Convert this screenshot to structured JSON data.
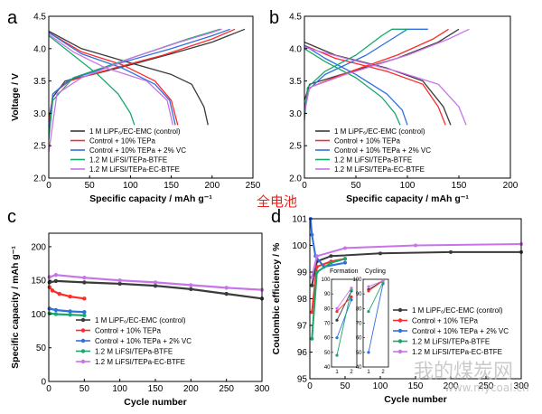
{
  "colors": {
    "s1": "#3a3a3a",
    "s2": "#ff2a2a",
    "s3": "#2f6fe0",
    "s4": "#19a86a",
    "s5": "#c774e8"
  },
  "legend_labels": [
    "1 M LiPF₆/EC-EMC (control)",
    "Control + 10% TEPa",
    "Control + 10% TEPa + 2% VC",
    "1.2 M LiFSI/TEPa-BTFE",
    "1.2 M LiFSI/TEPa-EC-BTFE"
  ],
  "annotation_cn": "全电池",
  "watermark": {
    "big": "我的煤炭网",
    "small": "www.mycoal.cn"
  },
  "chart_data": [
    {
      "panel": "a",
      "type": "line",
      "xlabel": "Specific capacity / mAh g⁻¹",
      "ylabel": "Voltage / V",
      "xlim": [
        0,
        250
      ],
      "ylim": [
        2.0,
        4.5
      ],
      "xticks": [
        0,
        50,
        100,
        150,
        200,
        250
      ],
      "yticks": [
        2.0,
        2.5,
        3.0,
        3.5,
        4.0,
        4.5
      ],
      "series": [
        {
          "name": "1 M LiPF₆/EC-EMC (control)",
          "charge": [
            [
              0,
              2.9
            ],
            [
              5,
              3.25
            ],
            [
              20,
              3.5
            ],
            [
              60,
              3.62
            ],
            [
              100,
              3.75
            ],
            [
              150,
              3.92
            ],
            [
              200,
              4.1
            ],
            [
              240,
              4.3
            ]
          ],
          "discharge": [
            [
              0,
              4.27
            ],
            [
              40,
              4.0
            ],
            [
              100,
              3.78
            ],
            [
              150,
              3.6
            ],
            [
              175,
              3.45
            ],
            [
              190,
              3.1
            ],
            [
              195,
              2.82
            ]
          ]
        },
        {
          "name": "Control + 10% TEPa",
          "charge": [
            [
              0,
              2.8
            ],
            [
              5,
              3.3
            ],
            [
              25,
              3.5
            ],
            [
              80,
              3.7
            ],
            [
              140,
              3.9
            ],
            [
              200,
              4.15
            ],
            [
              228,
              4.3
            ]
          ],
          "discharge": [
            [
              0,
              4.25
            ],
            [
              40,
              3.95
            ],
            [
              90,
              3.75
            ],
            [
              130,
              3.5
            ],
            [
              150,
              3.2
            ],
            [
              158,
              2.82
            ]
          ]
        },
        {
          "name": "Control + 10% TEPa + 2% VC",
          "charge": [
            [
              0,
              2.7
            ],
            [
              5,
              3.3
            ],
            [
              25,
              3.52
            ],
            [
              80,
              3.75
            ],
            [
              150,
              4.0
            ],
            [
              200,
              4.2
            ],
            [
              222,
              4.3
            ]
          ],
          "discharge": [
            [
              0,
              4.25
            ],
            [
              40,
              3.92
            ],
            [
              90,
              3.7
            ],
            [
              130,
              3.45
            ],
            [
              148,
              3.2
            ],
            [
              155,
              2.82
            ]
          ]
        },
        {
          "name": "1.2 M LiFSI/TEPa-BTFE",
          "charge": [
            [
              0,
              2.6
            ],
            [
              5,
              3.2
            ],
            [
              30,
              3.55
            ],
            [
              100,
              3.85
            ],
            [
              170,
              4.15
            ],
            [
              210,
              4.3
            ]
          ],
          "discharge": [
            [
              0,
              4.2
            ],
            [
              30,
              3.9
            ],
            [
              60,
              3.6
            ],
            [
              85,
              3.3
            ],
            [
              100,
              3.0
            ],
            [
              105,
              2.82
            ]
          ]
        },
        {
          "name": "1.2 M LiFSI/TEPa-EC-BTFE",
          "charge": [
            [
              0,
              2.4
            ],
            [
              10,
              3.3
            ],
            [
              40,
              3.55
            ],
            [
              100,
              3.85
            ],
            [
              160,
              4.1
            ],
            [
              200,
              4.25
            ],
            [
              212,
              4.3
            ]
          ],
          "discharge": [
            [
              0,
              4.22
            ],
            [
              30,
              3.95
            ],
            [
              70,
              3.7
            ],
            [
              120,
              3.5
            ],
            [
              145,
              3.2
            ],
            [
              152,
              2.82
            ]
          ]
        }
      ]
    },
    {
      "panel": "b",
      "type": "line",
      "xlabel": "Specific capacity / mAh g⁻¹",
      "ylabel": "",
      "xlim": [
        0,
        200
      ],
      "ylim": [
        2.0,
        4.5
      ],
      "xticks": [
        0,
        50,
        100,
        150,
        200
      ],
      "yticks": [
        2.0,
        2.5,
        3.0,
        3.5,
        4.0,
        4.5
      ],
      "series": [
        {
          "name": "1 M LiPF₆/EC-EMC (control)",
          "charge": [
            [
              0,
              3.2
            ],
            [
              5,
              3.45
            ],
            [
              40,
              3.62
            ],
            [
              90,
              3.85
            ],
            [
              130,
              4.1
            ],
            [
              150,
              4.3
            ]
          ],
          "discharge": [
            [
              0,
              4.1
            ],
            [
              30,
              3.9
            ],
            [
              80,
              3.7
            ],
            [
              115,
              3.5
            ],
            [
              135,
              3.1
            ],
            [
              142,
              2.82
            ]
          ]
        },
        {
          "name": "Control + 10% TEPa",
          "charge": [
            [
              0,
              3.1
            ],
            [
              5,
              3.4
            ],
            [
              40,
              3.62
            ],
            [
              90,
              3.9
            ],
            [
              125,
              4.15
            ],
            [
              140,
              4.3
            ]
          ],
          "discharge": [
            [
              0,
              4.05
            ],
            [
              30,
              3.85
            ],
            [
              80,
              3.65
            ],
            [
              115,
              3.45
            ],
            [
              130,
              3.1
            ],
            [
              137,
              2.82
            ]
          ]
        },
        {
          "name": "Control + 10% TEPa + 2% VC",
          "charge": [
            [
              0,
              3.0
            ],
            [
              3,
              3.35
            ],
            [
              20,
              3.6
            ],
            [
              60,
              3.9
            ],
            [
              90,
              4.2
            ],
            [
              100,
              4.3
            ],
            [
              120,
              4.3
            ]
          ],
          "discharge": [
            [
              0,
              4.05
            ],
            [
              20,
              3.85
            ],
            [
              50,
              3.6
            ],
            [
              80,
              3.3
            ],
            [
              95,
              3.05
            ],
            [
              100,
              2.82
            ]
          ]
        },
        {
          "name": "1.2 M LiFSI/TEPa-BTFE",
          "charge": [
            [
              0,
              2.9
            ],
            [
              3,
              3.4
            ],
            [
              20,
              3.65
            ],
            [
              50,
              3.9
            ],
            [
              75,
              4.2
            ],
            [
              85,
              4.3
            ],
            [
              100,
              4.3
            ]
          ],
          "discharge": [
            [
              0,
              4.0
            ],
            [
              20,
              3.8
            ],
            [
              50,
              3.55
            ],
            [
              75,
              3.25
            ],
            [
              88,
              3.0
            ],
            [
              93,
              2.82
            ]
          ]
        },
        {
          "name": "1.2 M LiFSI/TEPa-EC-BTFE",
          "charge": [
            [
              0,
              3.0
            ],
            [
              5,
              3.4
            ],
            [
              40,
              3.6
            ],
            [
              100,
              3.9
            ],
            [
              140,
              4.15
            ],
            [
              160,
              4.3
            ]
          ],
          "discharge": [
            [
              0,
              4.02
            ],
            [
              40,
              3.85
            ],
            [
              90,
              3.65
            ],
            [
              130,
              3.45
            ],
            [
              150,
              3.1
            ],
            [
              157,
              2.82
            ]
          ]
        }
      ]
    },
    {
      "panel": "c",
      "type": "line",
      "xlabel": "Cycle number",
      "ylabel": "Specific capacity / mAh g⁻¹",
      "xlim": [
        0,
        300
      ],
      "ylim": [
        0,
        220
      ],
      "xticks": [
        0,
        50,
        100,
        150,
        200,
        250,
        300
      ],
      "yticks": [
        0,
        50,
        100,
        150,
        200
      ],
      "series": [
        {
          "name": "1 M LiPF₆/EC-EMC (control)",
          "points": [
            [
              1,
              147
            ],
            [
              10,
              149
            ],
            [
              50,
              147
            ],
            [
              100,
              145
            ],
            [
              150,
              142
            ],
            [
              200,
              137
            ],
            [
              250,
              130
            ],
            [
              300,
              123
            ]
          ]
        },
        {
          "name": "Control + 10% TEPa",
          "points": [
            [
              1,
              140
            ],
            [
              5,
              135
            ],
            [
              15,
              130
            ],
            [
              30,
              126
            ],
            [
              50,
              123
            ]
          ]
        },
        {
          "name": "Control + 10% TEPa + 2% VC",
          "points": [
            [
              1,
              108
            ],
            [
              10,
              106
            ],
            [
              30,
              104
            ],
            [
              50,
              103
            ]
          ]
        },
        {
          "name": "1.2 M LiFSI/TEPa-BTFE",
          "points": [
            [
              1,
              101
            ],
            [
              10,
              100
            ],
            [
              30,
              99
            ],
            [
              50,
              98
            ]
          ]
        },
        {
          "name": "1.2 M LiFSI/TEPa-EC-BTFE",
          "points": [
            [
              1,
              155
            ],
            [
              10,
              158
            ],
            [
              50,
              154
            ],
            [
              100,
              150
            ],
            [
              150,
              147
            ],
            [
              200,
              143
            ],
            [
              250,
              139
            ],
            [
              300,
              136
            ]
          ]
        }
      ]
    },
    {
      "panel": "d",
      "type": "line",
      "xlabel": "Cycle number",
      "ylabel": "Coulombic efficiency / %",
      "xlim": [
        0,
        300
      ],
      "ylim": [
        95,
        101
      ],
      "xticks": [
        0,
        50,
        100,
        150,
        200,
        250,
        300
      ],
      "yticks": [
        95,
        96,
        97,
        98,
        99,
        100,
        101
      ],
      "series": [
        {
          "name": "1 M LiPF₆/EC-EMC (control)",
          "points": [
            [
              3,
              98.5
            ],
            [
              10,
              99.4
            ],
            [
              30,
              99.6
            ],
            [
              100,
              99.7
            ],
            [
              200,
              99.75
            ],
            [
              300,
              99.75
            ]
          ]
        },
        {
          "name": "Control + 10% TEPa",
          "points": [
            [
              3,
              97.5
            ],
            [
              10,
              99.2
            ],
            [
              30,
              99.4
            ],
            [
              50,
              99.5
            ]
          ]
        },
        {
          "name": "Control + 10% TEPa + 2% VC",
          "points": [
            [
              1,
              101
            ],
            [
              3,
              100.4
            ],
            [
              8,
              99.6
            ],
            [
              20,
              99.2
            ],
            [
              50,
              99.35
            ]
          ]
        },
        {
          "name": "1.2 M LiFSI/TEPa-BTFE",
          "points": [
            [
              3,
              96.5
            ],
            [
              10,
              99.0
            ],
            [
              30,
              99.35
            ],
            [
              50,
              99.5
            ]
          ]
        },
        {
          "name": "1.2 M LiFSI/TEPa-EC-BTFE",
          "points": [
            [
              3,
              98.8
            ],
            [
              10,
              99.6
            ],
            [
              50,
              99.9
            ],
            [
              150,
              100.0
            ],
            [
              300,
              100.05
            ]
          ]
        }
      ],
      "inset": {
        "labels": [
          "Formation",
          "Cycling"
        ],
        "ylim": [
          40,
          100
        ],
        "yticks": [
          40,
          50,
          60,
          70,
          80,
          90,
          100
        ],
        "xticks": [
          1,
          2
        ],
        "formation": [
          [
            72,
            92
          ],
          [
            78,
            88
          ],
          [
            60,
            86
          ],
          [
            48,
            93
          ],
          [
            80,
            94
          ]
        ],
        "cycling": [
          [
            93,
            99
          ],
          [
            92,
            99
          ],
          [
            50,
            97
          ],
          [
            78,
            98
          ],
          [
            95,
            99
          ]
        ]
      }
    }
  ]
}
